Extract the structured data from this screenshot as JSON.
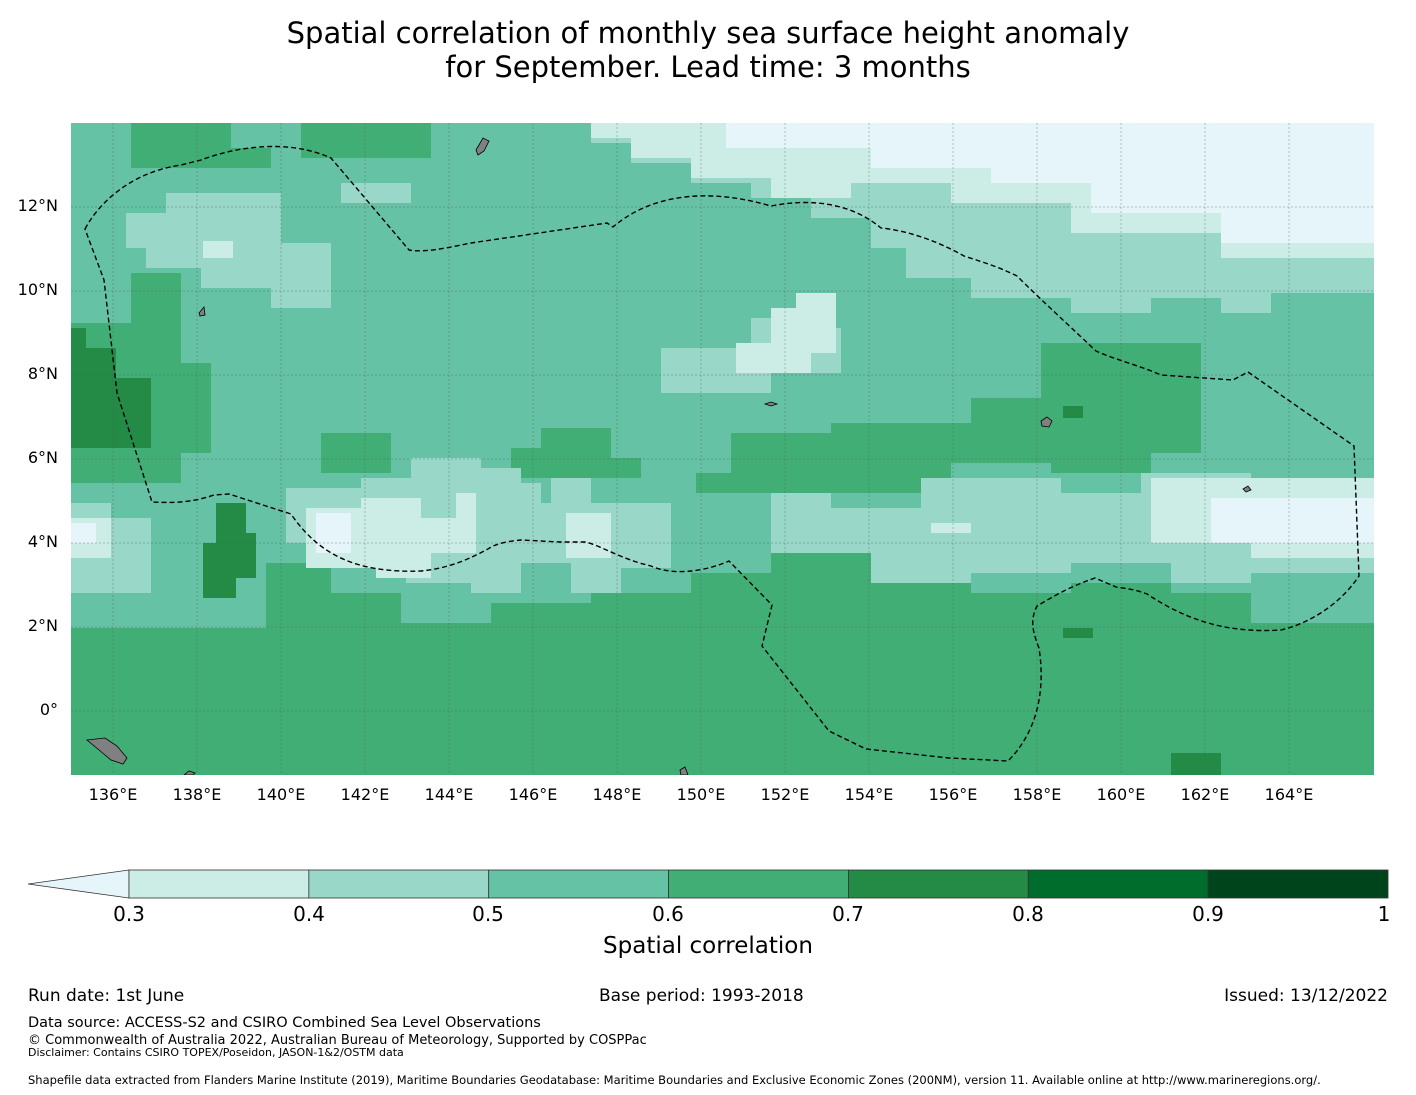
{
  "title": {
    "line1": "Spatial correlation of monthly sea surface height anomaly",
    "line2": "for September. Lead time: 3 months"
  },
  "map": {
    "lon_range": [
      135.0,
      166.0
    ],
    "lat_range": [
      -1.5,
      14.0
    ],
    "lat_ticks": [
      "12°N",
      "10°N",
      "8°N",
      "6°N",
      "4°N",
      "2°N",
      "0°"
    ],
    "lat_tick_values": [
      12,
      10,
      8,
      6,
      4,
      2,
      0
    ],
    "lon_ticks": [
      "136°E",
      "138°E",
      "140°E",
      "142°E",
      "144°E",
      "146°E",
      "148°E",
      "150°E",
      "152°E",
      "154°E",
      "156°E",
      "158°E",
      "160°E",
      "162°E",
      "164°E"
    ],
    "lon_tick_values": [
      136,
      138,
      140,
      142,
      144,
      146,
      148,
      150,
      152,
      154,
      156,
      158,
      160,
      162,
      164
    ],
    "gridlines": true,
    "land_color": "#808080",
    "eez_boundary_style": "dashed black"
  },
  "colorbar": {
    "label": "Spatial correlation",
    "ticks": [
      "0.3",
      "0.4",
      "0.5",
      "0.6",
      "0.7",
      "0.8",
      "0.9",
      "1"
    ],
    "bins": [
      {
        "range": [
          0.3,
          0.4
        ],
        "color": "#ccece6"
      },
      {
        "range": [
          0.4,
          0.5
        ],
        "color": "#99d8c9"
      },
      {
        "range": [
          0.5,
          0.6
        ],
        "color": "#66c2a4"
      },
      {
        "range": [
          0.6,
          0.7
        ],
        "color": "#41ae76"
      },
      {
        "range": [
          0.7,
          0.8
        ],
        "color": "#238b45"
      },
      {
        "range": [
          0.8,
          0.9
        ],
        "color": "#006d2c"
      },
      {
        "range": [
          0.9,
          1.0
        ],
        "color": "#00441b"
      }
    ],
    "under_color": "#e5f5f9"
  },
  "footer": {
    "run_date": "Run date: 1st June",
    "base_period": "Base period: 1993-2018",
    "issued": "Issued: 13/12/2022",
    "data_source": "Data source: ACCESS-S2 and CSIRO Combined Sea Level Observations",
    "copyright": "© Commonwealth of Australia 2022, Australian Bureau of Meteorology, Supported by COSPPac",
    "disclaimer": "Disclaimer: Contains CSIRO TOPEX/Poseidon, JASON-1&2/OSTM data",
    "shapefile": "Shapefile data extracted from Flanders Marine Institute (2019), Maritime Boundaries Geodatabase: Maritime Boundaries and Exclusive Economic Zones (200NM), version 11. Available online at http://www.marineregions.org/."
  }
}
